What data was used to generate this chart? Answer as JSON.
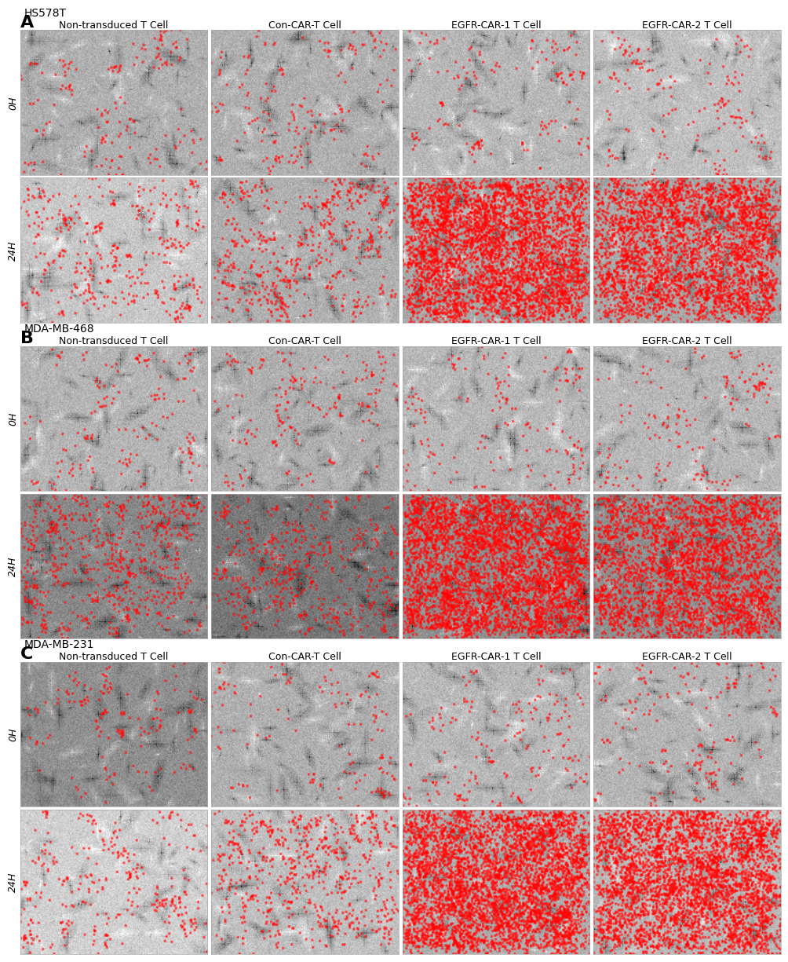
{
  "panels": [
    {
      "label": "A",
      "cell_line": "HS578T",
      "col_headers": [
        "Non-transduced T Cell",
        "Con-CAR-T Cell",
        "EGFR-CAR-1 T Cell",
        "EGFR-CAR-2 T Cell"
      ],
      "row_labels": [
        "0H",
        "24H"
      ],
      "bg_colors_0h": [
        "#b0b0b0",
        "#b0b0b0",
        "#b8b8b8",
        "#c0c0c0"
      ],
      "bg_colors_24h": [
        "#c8c8c8",
        "#b0b0b0",
        "#a8a8a8",
        "#a8a8a8"
      ],
      "red_density_0h": [
        0.01,
        0.01,
        0.01,
        0.01
      ],
      "red_density_24h": [
        0.02,
        0.03,
        0.25,
        0.22
      ]
    },
    {
      "label": "B",
      "cell_line": "MDA-MB-468",
      "col_headers": [
        "Non-transduced T Cell",
        "Con-CAR-T Cell",
        "EGFR-CAR-1 T Cell",
        "EGFR-CAR-2 T Cell"
      ],
      "row_labels": [
        "0H",
        "24H"
      ],
      "bg_colors_0h": [
        "#b5b5b5",
        "#b0b0b0",
        "#b8b8b8",
        "#b8b8b8"
      ],
      "bg_colors_24h": [
        "#888888",
        "#787878",
        "#909090",
        "#909090"
      ],
      "red_density_0h": [
        0.01,
        0.01,
        0.01,
        0.01
      ],
      "red_density_24h": [
        0.04,
        0.03,
        0.28,
        0.2
      ]
    },
    {
      "label": "C",
      "cell_line": "MDA-MB-231",
      "col_headers": [
        "Non-transduced T Cell",
        "Con-CAR-T Cell",
        "EGFR-CAR-1 T Cell",
        "EGFR-CAR-2 T Cell"
      ],
      "row_labels": [
        "0H",
        "24H"
      ],
      "bg_colors_0h": [
        "#909090",
        "#b0b0b0",
        "#b8b8b8",
        "#b5b5b5"
      ],
      "bg_colors_24h": [
        "#d0d0d0",
        "#c0c0c0",
        "#b0b0b0",
        "#b8b8b8"
      ],
      "red_density_0h": [
        0.01,
        0.01,
        0.01,
        0.01
      ],
      "red_density_24h": [
        0.02,
        0.04,
        0.28,
        0.24
      ]
    }
  ],
  "background_color": "#ffffff",
  "border_color": "#cccccc",
  "label_fontsize": 14,
  "header_fontsize": 9,
  "cell_line_fontsize": 10,
  "row_label_fontsize": 9
}
